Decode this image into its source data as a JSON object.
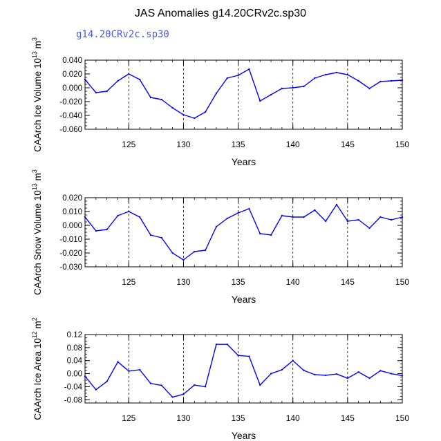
{
  "title": "JAS Anomalies g14.20CRv2c.sp30",
  "subtitle": "g14.20CRv2c.sp30",
  "colors": {
    "line": "#0000ff",
    "subtitle": "#4a5cd4",
    "axis": "#000000"
  },
  "chart_data": [
    {
      "type": "line",
      "xlabel": "Years",
      "ylabel": "CAArch Ice Volume 10",
      "ylabel_exp": "13",
      "ylabel_unit_tail": " m",
      "ylabel_unit_exp": "3",
      "xlim": [
        121,
        150
      ],
      "ylim": [
        -0.06,
        0.04
      ],
      "xticks": [
        125,
        130,
        135,
        140,
        145,
        150
      ],
      "xtick_labels": [
        "125",
        "130",
        "135",
        "140",
        "145",
        "150"
      ],
      "yticks": [
        -0.06,
        -0.04,
        -0.02,
        0.0,
        0.02,
        0.04
      ],
      "ytick_labels": [
        "-0.060",
        "-0.040",
        "-0.020",
        "0.000",
        "0.020",
        "0.040"
      ],
      "reference_lines_x": [
        125,
        130,
        135,
        140,
        145
      ],
      "series": [
        {
          "x": [
            121,
            122,
            123,
            124,
            125,
            126,
            127,
            128,
            129,
            130,
            131,
            132,
            133,
            134,
            135,
            136,
            137,
            138,
            139,
            140,
            141,
            142,
            143,
            144,
            145,
            146,
            147,
            148,
            149,
            150
          ],
          "values": [
            0.012,
            -0.007,
            -0.005,
            0.01,
            0.02,
            0.012,
            -0.014,
            -0.017,
            -0.029,
            -0.039,
            -0.044,
            -0.035,
            -0.008,
            0.014,
            0.018,
            0.027,
            -0.019,
            -0.01,
            -0.001,
            0.0,
            0.002,
            0.014,
            0.019,
            0.022,
            0.019,
            0.01,
            -0.001,
            0.009,
            0.01,
            0.011
          ]
        }
      ]
    },
    {
      "type": "line",
      "xlabel": "Years",
      "ylabel": "CAArch Snow Volume 10",
      "ylabel_exp": "13",
      "ylabel_unit_tail": " m",
      "ylabel_unit_exp": "3",
      "xlim": [
        121,
        150
      ],
      "ylim": [
        -0.03,
        0.02
      ],
      "xticks": [
        125,
        130,
        135,
        140,
        145,
        150
      ],
      "xtick_labels": [
        "125",
        "130",
        "135",
        "140",
        "145",
        "150"
      ],
      "yticks": [
        -0.03,
        -0.02,
        -0.01,
        0.0,
        0.01,
        0.02
      ],
      "ytick_labels": [
        "-0.030",
        "-0.020",
        "-0.010",
        "0.000",
        "0.010",
        "0.020"
      ],
      "reference_lines_x": [
        125,
        130,
        135,
        140,
        145
      ],
      "series": [
        {
          "x": [
            121,
            122,
            123,
            124,
            125,
            126,
            127,
            128,
            129,
            130,
            131,
            132,
            133,
            134,
            135,
            136,
            137,
            138,
            139,
            140,
            141,
            142,
            143,
            144,
            145,
            146,
            147,
            148,
            149,
            150
          ],
          "values": [
            0.006,
            -0.004,
            -0.003,
            0.007,
            0.01,
            0.006,
            -0.007,
            -0.009,
            -0.02,
            -0.025,
            -0.019,
            -0.018,
            -0.001,
            0.005,
            0.009,
            0.012,
            -0.006,
            -0.007,
            0.007,
            0.006,
            0.006,
            0.011,
            0.003,
            0.015,
            0.003,
            0.004,
            -0.002,
            0.006,
            0.004,
            0.006
          ]
        }
      ]
    },
    {
      "type": "line",
      "xlabel": "Years",
      "ylabel": "CAArch Ice Area 10",
      "ylabel_exp": "12",
      "ylabel_unit_tail": " m",
      "ylabel_unit_exp": "2",
      "xlim": [
        121,
        150
      ],
      "ylim": [
        -0.09,
        0.12
      ],
      "xticks": [
        125,
        130,
        135,
        140,
        145,
        150
      ],
      "xtick_labels": [
        "125",
        "130",
        "135",
        "140",
        "145",
        "150"
      ],
      "yticks": [
        -0.08,
        -0.04,
        0.0,
        0.04,
        0.08,
        0.12
      ],
      "ytick_labels": [
        "-0.08",
        "-0.04",
        "0.00",
        "0.04",
        "0.08",
        "0.12"
      ],
      "reference_lines_x": [
        125,
        130,
        135,
        140,
        145
      ],
      "series": [
        {
          "x": [
            121,
            122,
            123,
            124,
            125,
            126,
            127,
            128,
            129,
            130,
            131,
            132,
            133,
            134,
            135,
            136,
            137,
            138,
            139,
            140,
            141,
            142,
            143,
            144,
            145,
            146,
            147,
            148,
            149,
            150
          ],
          "values": [
            -0.008,
            -0.049,
            -0.024,
            0.036,
            0.008,
            0.012,
            -0.03,
            -0.036,
            -0.072,
            -0.063,
            -0.035,
            -0.04,
            0.09,
            0.09,
            0.056,
            0.053,
            -0.035,
            0.0,
            0.012,
            0.04,
            0.01,
            -0.003,
            -0.005,
            -0.001,
            -0.014,
            0.005,
            -0.014,
            0.009,
            0.0,
            -0.006
          ]
        }
      ]
    }
  ]
}
